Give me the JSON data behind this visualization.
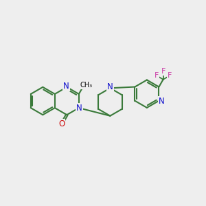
{
  "bg_color": "#eeeeee",
  "bond_color": "#3a7a3a",
  "N_color": "#1010cc",
  "O_color": "#cc1010",
  "F_color": "#cc44aa",
  "line_width": 1.5,
  "font_size": 8.5,
  "fig_w": 3.0,
  "fig_h": 3.0,
  "dpi": 100,
  "xlim": [
    0,
    10
  ],
  "ylim": [
    0,
    10
  ],
  "angles_flat": [
    90,
    30,
    -30,
    -90,
    -150,
    150
  ],
  "r_ring": 0.68
}
